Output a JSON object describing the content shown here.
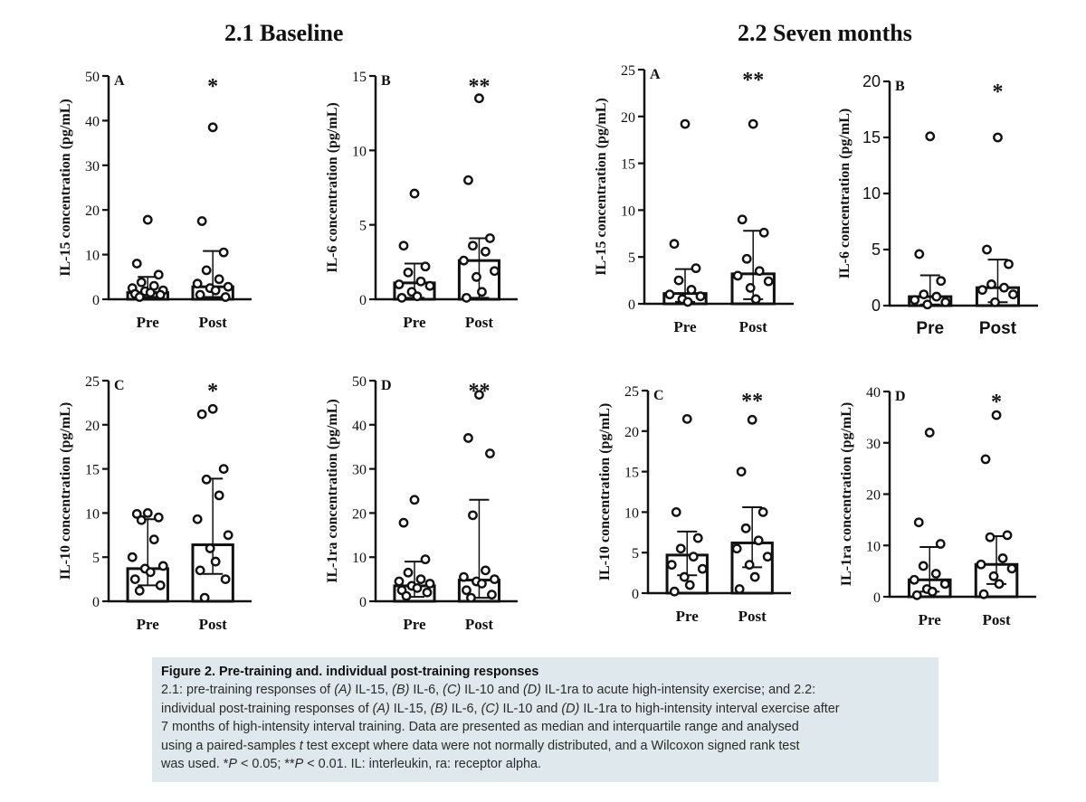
{
  "sections": [
    {
      "title": "2.1 Baseline"
    },
    {
      "title": "2.2 Seven months"
    }
  ],
  "chart_data": [
    {
      "id": "b_A",
      "type": "bar",
      "panel": "A",
      "section": "2.1 Baseline",
      "ylabel": "IL-15 concentration (pg/mL)",
      "ylim": [
        0,
        50
      ],
      "ticks": [
        0,
        10,
        20,
        30,
        40,
        50
      ],
      "categories": [
        "Pre",
        "Post"
      ],
      "significance": "*",
      "bars": [
        {
          "median": 1.5,
          "q1": 0.5,
          "q3": 5.0,
          "points": [
            17.8,
            8.0,
            5.5,
            3.8,
            3.0,
            2.5,
            2.0,
            1.8,
            1.5,
            1.2,
            1.0,
            0.5
          ]
        },
        {
          "median": 2.8,
          "q1": 0.5,
          "q3": 10.8,
          "points": [
            38.5,
            17.5,
            10.5,
            6.5,
            4.5,
            3.5,
            2.8,
            2.5,
            2.0,
            1.0,
            0.5
          ]
        }
      ]
    },
    {
      "id": "b_B",
      "type": "bar",
      "panel": "B",
      "section": "2.1 Baseline",
      "ylabel": "IL-6 concentration (pg/mL)",
      "ylim": [
        0,
        15
      ],
      "ticks": [
        0,
        5,
        10,
        15
      ],
      "categories": [
        "Pre",
        "Post"
      ],
      "significance": "**",
      "bars": [
        {
          "median": 1.1,
          "q1": 0.1,
          "q3": 2.4,
          "points": [
            7.1,
            3.6,
            2.2,
            1.8,
            1.2,
            1.0,
            0.9,
            0.5,
            0.2,
            0.1
          ]
        },
        {
          "median": 2.6,
          "q1": 0.1,
          "q3": 4.1,
          "points": [
            13.5,
            8.0,
            4.1,
            3.6,
            3.2,
            2.6,
            1.9,
            1.5,
            0.5,
            0.1
          ]
        }
      ]
    },
    {
      "id": "b_C",
      "type": "bar",
      "panel": "C",
      "section": "2.1 Baseline",
      "ylabel": "IL-10 concentration (pg/mL)",
      "ylim": [
        0,
        25
      ],
      "ticks": [
        0,
        5,
        10,
        15,
        20,
        25
      ],
      "categories": [
        "Pre",
        "Post"
      ],
      "significance": "*",
      "bars": [
        {
          "median": 3.7,
          "q1": 1.8,
          "q3": 9.3,
          "points": [
            10.0,
            9.9,
            9.5,
            9.2,
            7.0,
            5.0,
            4.0,
            3.7,
            3.3,
            2.5,
            1.8,
            1.2
          ]
        },
        {
          "median": 6.4,
          "q1": 3.1,
          "q3": 13.9,
          "points": [
            21.8,
            21.2,
            15.0,
            13.8,
            12.0,
            9.3,
            7.5,
            6.0,
            4.5,
            3.5,
            2.5,
            0.4
          ]
        }
      ]
    },
    {
      "id": "b_D",
      "type": "bar",
      "panel": "D",
      "section": "2.1 Baseline",
      "ylabel": "IL-1ra concentration (pg/mL)",
      "ylim": [
        0,
        50
      ],
      "ticks": [
        0,
        10,
        20,
        30,
        40,
        50
      ],
      "categories": [
        "Pre",
        "Post"
      ],
      "significance": "**",
      "bars": [
        {
          "median": 3.5,
          "q1": 1.0,
          "q3": 9.0,
          "points": [
            23.0,
            17.8,
            9.5,
            6.5,
            5.0,
            4.5,
            4.0,
            3.5,
            3.0,
            2.5,
            2.0,
            1.2
          ]
        },
        {
          "median": 4.8,
          "q1": 0.8,
          "q3": 23.0,
          "points": [
            46.8,
            37.0,
            33.5,
            19.5,
            7.0,
            5.5,
            5.0,
            4.5,
            4.0,
            2.5,
            1.5,
            0.8
          ]
        }
      ]
    },
    {
      "id": "s_A",
      "type": "bar",
      "panel": "A",
      "section": "2.2 Seven months",
      "ylabel": "IL-15 concentration (pg/mL)",
      "ylim": [
        0,
        25
      ],
      "ticks": [
        0,
        5,
        10,
        15,
        20,
        25
      ],
      "categories": [
        "Pre",
        "Post"
      ],
      "significance": "**",
      "bars": [
        {
          "median": 1.1,
          "q1": 0.2,
          "q3": 3.7,
          "points": [
            19.2,
            6.4,
            3.8,
            2.5,
            1.5,
            1.0,
            0.8,
            0.5,
            0.2
          ]
        },
        {
          "median": 3.2,
          "q1": 0.5,
          "q3": 7.8,
          "points": [
            19.2,
            9.0,
            7.6,
            4.8,
            3.5,
            3.0,
            2.4,
            1.7,
            0.5
          ]
        }
      ]
    },
    {
      "id": "s_B",
      "type": "bar",
      "panel": "B",
      "section": "2.2 Seven months",
      "ylabel": "IL-6 concentration (pg/mL)",
      "ylim": [
        0,
        20
      ],
      "ticks": [
        0,
        5,
        10,
        15,
        20
      ],
      "categories": [
        "Pre",
        "Post"
      ],
      "significance": "*",
      "bars": [
        {
          "median": 0.8,
          "q1": 0.1,
          "q3": 2.7,
          "points": [
            15.1,
            4.6,
            2.2,
            1.0,
            0.8,
            0.5,
            0.3,
            0.1
          ]
        },
        {
          "median": 1.6,
          "q1": 0.3,
          "q3": 4.1,
          "points": [
            15.0,
            5.0,
            3.7,
            1.9,
            1.6,
            1.4,
            1.0,
            0.3
          ]
        }
      ]
    },
    {
      "id": "s_C",
      "type": "bar",
      "panel": "C",
      "section": "2.2 Seven months",
      "ylabel": "IL-10 concentration (pg/mL)",
      "ylim": [
        0,
        25
      ],
      "ticks": [
        0,
        5,
        10,
        15,
        20,
        25
      ],
      "categories": [
        "Pre",
        "Post"
      ],
      "significance": "**",
      "bars": [
        {
          "median": 4.7,
          "q1": 2.2,
          "q3": 7.6,
          "points": [
            21.5,
            10.0,
            6.8,
            5.5,
            4.5,
            3.5,
            3.0,
            2.0,
            1.0,
            0.2
          ]
        },
        {
          "median": 6.2,
          "q1": 3.2,
          "q3": 10.6,
          "points": [
            21.4,
            15.0,
            10.0,
            8.0,
            6.5,
            5.5,
            4.5,
            3.5,
            2.0,
            0.5
          ]
        }
      ]
    },
    {
      "id": "s_D",
      "type": "bar",
      "panel": "D",
      "section": "2.2 Seven months",
      "ylabel": "IL-1ra concentration (pg/mL)",
      "ylim": [
        0,
        40
      ],
      "ticks": [
        0,
        10,
        20,
        30,
        40
      ],
      "categories": [
        "Pre",
        "Post"
      ],
      "significance": "*",
      "bars": [
        {
          "median": 3.3,
          "q1": 1.0,
          "q3": 9.7,
          "points": [
            32.0,
            14.5,
            10.3,
            6.0,
            4.5,
            3.3,
            2.5,
            1.5,
            1.0,
            0.3
          ]
        },
        {
          "median": 6.3,
          "q1": 2.5,
          "q3": 11.8,
          "points": [
            35.4,
            26.8,
            12.0,
            11.6,
            7.5,
            6.3,
            5.5,
            4.0,
            2.5,
            0.5
          ]
        }
      ]
    }
  ],
  "caption": {
    "title": "Figure 2. Pre-training and.  individual post-training responses",
    "l1a": "2.1: pre-training responses of ",
    "l1b": "(A)",
    "l1c": " IL-15, ",
    "l1d": "(B)",
    "l1e": " IL-6, ",
    "l1f": "(C)",
    "l1g": " IL-10 and ",
    "l1h": "(D)",
    "l1i": " IL-1ra to acute high-intensity exercise; and 2.2:",
    "l2a": "individual post-training responses of ",
    "l2b": "(A)",
    "l2c": " IL-15, ",
    "l2d": "(B)",
    "l2e": " IL-6, ",
    "l2f": "(C)",
    "l2g": " IL-10 and ",
    "l2h": "(D)",
    "l2i": " IL-1ra to high-intensity interval exercise after",
    "l3": "7 months of high-intensity interval training. Data are presented as median and interquartile range and analysed",
    "l4a": "using a paired-samples ",
    "l4b": "t",
    "l4c": " test except where data were not normally distributed, and a Wilcoxon signed rank test",
    "l5a": "was used. *",
    "l5b": "P",
    "l5c": " < 0.05; **",
    "l5d": "P",
    "l5e": " < 0.01. IL: interleukin, ra: receptor alpha."
  }
}
